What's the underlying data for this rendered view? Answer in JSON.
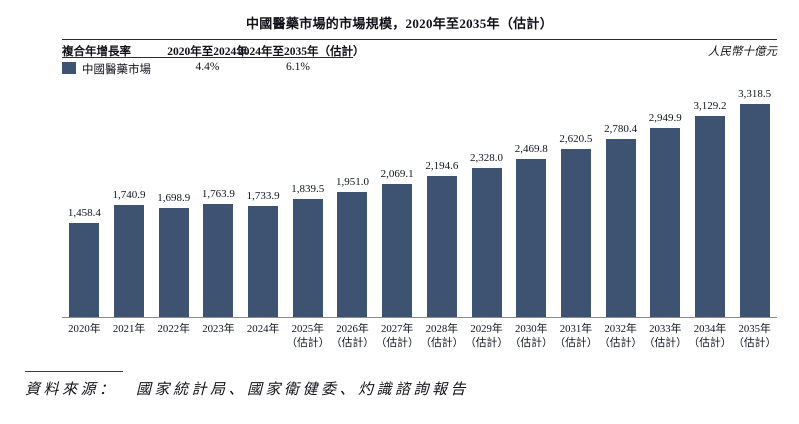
{
  "title": "中國醫藥市場的市場規模，2020年至2035年（估計）",
  "unit_label": "人民幣十億元",
  "legend_table": {
    "col1_header": "複合年增長率",
    "col2_header": "2020年至2024年",
    "col3_header": "2024年至2035年（估計）",
    "series_label": "中國醫藥市場",
    "cagr_2020_2024": "4.4%",
    "cagr_2024_2035": "6.1%"
  },
  "source": "資料來源：　國家統計局、國家衛健委、灼識諮詢報告",
  "colors": {
    "bar": "#3E5271",
    "rule": "#2b2b2b",
    "axis": "#8a8a8a"
  },
  "chart_data": {
    "type": "bar",
    "title": "中國醫藥市場的市場規模，2020年至2035年（估計）",
    "ylabel": "人民幣十億元",
    "xlabel": "",
    "ylim": [
      0,
      3500
    ],
    "grid": false,
    "legend_position": "top-left-table",
    "categories": [
      "2020年",
      "2021年",
      "2022年",
      "2023年",
      "2024年",
      "2025年（估計）",
      "2026年（估計）",
      "2027年（估計）",
      "2028年（估計）",
      "2029年（估計）",
      "2030年（估計）",
      "2031年（估計）",
      "2032年（估計）",
      "2033年（估計）",
      "2034年（估計）",
      "2035年（估計）"
    ],
    "tick_lines": [
      [
        "2020年"
      ],
      [
        "2021年"
      ],
      [
        "2022年"
      ],
      [
        "2023年"
      ],
      [
        "2024年"
      ],
      [
        "2025年",
        "（估計）"
      ],
      [
        "2026年",
        "（估計）"
      ],
      [
        "2027年",
        "（估計）"
      ],
      [
        "2028年",
        "（估計）"
      ],
      [
        "2029年",
        "（估計）"
      ],
      [
        "2030年",
        "（估計）"
      ],
      [
        "2031年",
        "（估計）"
      ],
      [
        "2032年",
        "（估計）"
      ],
      [
        "2033年",
        "（估計）"
      ],
      [
        "2034年",
        "（估計）"
      ],
      [
        "2035年",
        "（估計）"
      ],
      [
        "",
        ""
      ]
    ],
    "series": [
      {
        "name": "中國醫藥市場",
        "values": [
          1458.4,
          1740.9,
          1698.9,
          1763.9,
          1733.9,
          1839.5,
          1951.0,
          2069.1,
          2194.6,
          2328.0,
          2469.8,
          2620.5,
          2780.4,
          2949.9,
          3129.2,
          3318.5
        ],
        "value_labels": [
          "1,458.4",
          "1,740.9",
          "1,698.9",
          "1,763.9",
          "1,733.9",
          "1,839.5",
          "1,951.0",
          "2,069.1",
          "2,194.6",
          "2,328.0",
          "2,469.8",
          "2,620.5",
          "2,780.4",
          "2,949.9",
          "3,129.2",
          "3,318.5"
        ]
      }
    ]
  }
}
